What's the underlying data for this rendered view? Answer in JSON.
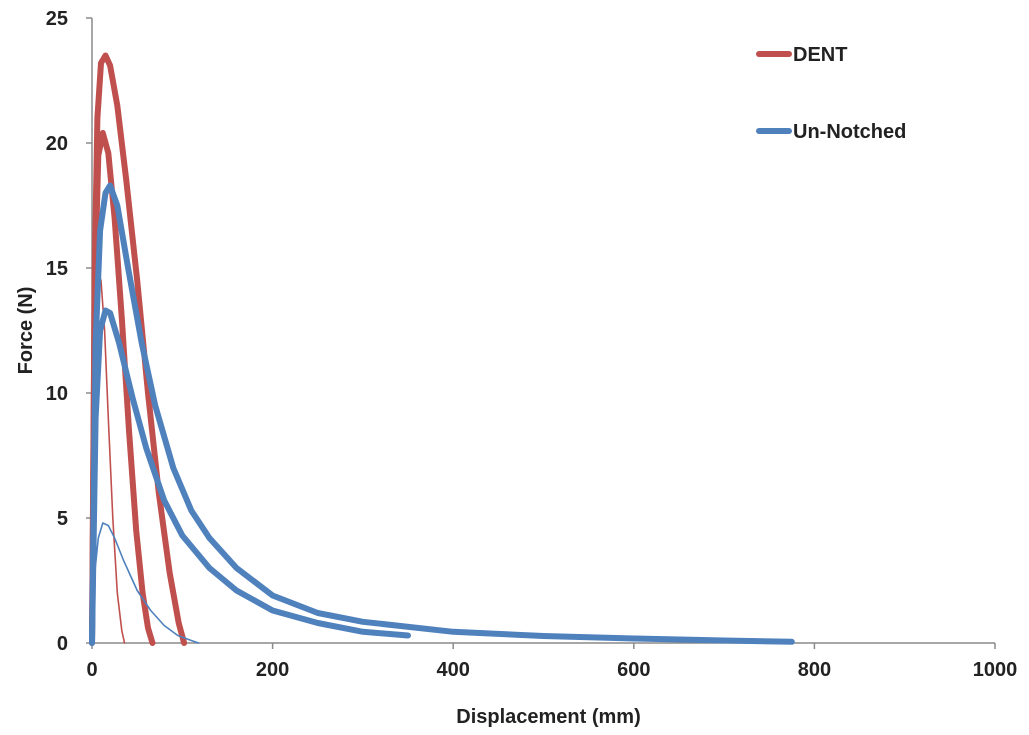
{
  "chart_data": {
    "type": "line",
    "title": "",
    "xlabel": "Displacement (mm)",
    "ylabel": "Force (N)",
    "xlim": [
      0,
      1000
    ],
    "ylim": [
      0,
      25
    ],
    "xticks": [
      0,
      200,
      400,
      600,
      800,
      1000
    ],
    "yticks": [
      0,
      5,
      10,
      15,
      20,
      25
    ],
    "grid": false,
    "legend_position": "top-right",
    "legend": [
      {
        "label": "DENT",
        "color": "#C0504D"
      },
      {
        "label": "Un-Notched",
        "color": "#4F81BD"
      }
    ],
    "series": [
      {
        "name": "DENT",
        "color": "#C0504D",
        "weight": "heavy",
        "x": [
          0,
          3,
          6,
          10,
          15,
          20,
          28,
          38,
          50,
          62,
          74,
          86,
          96,
          102
        ],
        "y": [
          0,
          15,
          21,
          23.2,
          23.5,
          23.1,
          21.5,
          18.5,
          14.5,
          10,
          6,
          2.8,
          0.8,
          0
        ]
      },
      {
        "name": "DENT",
        "color": "#C0504D",
        "weight": "heavy",
        "x": [
          0,
          3,
          7,
          12,
          18,
          25,
          33,
          41,
          49,
          56,
          62,
          67
        ],
        "y": [
          0,
          14,
          19.5,
          20.4,
          19.6,
          17,
          13,
          8.5,
          4.5,
          2,
          0.6,
          0
        ]
      },
      {
        "name": "DENT",
        "color": "#C0504D",
        "weight": "thin",
        "x": [
          0,
          2,
          4,
          7,
          10,
          14,
          18,
          23,
          28,
          33,
          36
        ],
        "y": [
          0,
          10,
          14,
          14.8,
          14.5,
          12.5,
          9,
          5,
          2,
          0.5,
          0
        ]
      },
      {
        "name": "Un-Notched",
        "color": "#4F81BD",
        "weight": "heavy",
        "x": [
          0,
          4,
          9,
          15,
          20,
          28,
          40,
          55,
          70,
          90,
          110,
          130,
          160,
          200,
          250,
          300,
          400,
          500,
          600,
          700,
          775
        ],
        "y": [
          0,
          12,
          16.5,
          18,
          18.3,
          17.5,
          15,
          12,
          9.5,
          7,
          5.3,
          4.2,
          3,
          1.9,
          1.2,
          0.85,
          0.45,
          0.28,
          0.18,
          0.1,
          0.05
        ]
      },
      {
        "name": "Un-Notched",
        "color": "#4F81BD",
        "weight": "heavy",
        "x": [
          0,
          4,
          9,
          15,
          20,
          30,
          45,
          60,
          80,
          100,
          130,
          160,
          200,
          250,
          300,
          350
        ],
        "y": [
          0,
          9,
          12.5,
          13.3,
          13.2,
          12,
          9.8,
          7.8,
          5.7,
          4.3,
          3,
          2.1,
          1.3,
          0.8,
          0.45,
          0.3
        ]
      },
      {
        "name": "Un-Notched",
        "color": "#4F81BD",
        "weight": "thin",
        "x": [
          0,
          3,
          7,
          12,
          18,
          25,
          35,
          50,
          65,
          80,
          95,
          110,
          118
        ],
        "y": [
          0,
          2.8,
          4.2,
          4.8,
          4.7,
          4.2,
          3.3,
          2.1,
          1.3,
          0.7,
          0.3,
          0.1,
          0
        ]
      }
    ]
  }
}
